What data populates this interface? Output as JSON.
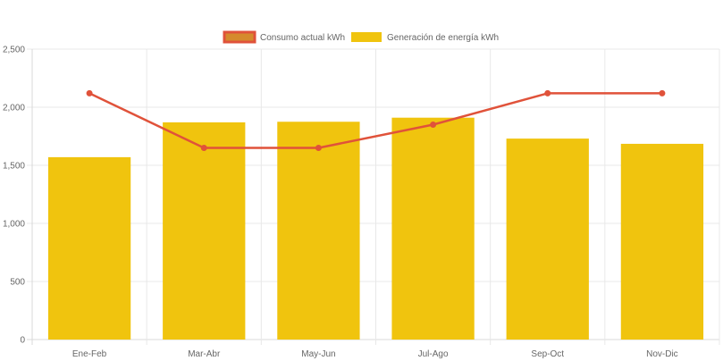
{
  "chart_data": {
    "type": "bar",
    "categories": [
      "Ene-Feb",
      "Mar-Abr",
      "May-Jun",
      "Jul-Ago",
      "Sep-Oct",
      "Nov-Dic"
    ],
    "series": [
      {
        "name": "Consumo actual kWh",
        "type": "line",
        "values": [
          2120,
          1650,
          1650,
          1850,
          2120,
          2120
        ],
        "color": "#e0523a",
        "legend_fill": "#d58a2c"
      },
      {
        "name": "Generación de energía kWh",
        "type": "bar",
        "values": [
          1570,
          1870,
          1875,
          1910,
          1730,
          1685
        ],
        "color": "#f0c40e"
      }
    ],
    "ylim": [
      0,
      2500
    ],
    "yticks": [
      0,
      500,
      1000,
      1500,
      2000,
      2500
    ],
    "ytick_labels": [
      "0",
      "500",
      "1,000",
      "1,500",
      "2,000",
      "2,500"
    ],
    "grid": true,
    "legend_position": "top-center",
    "title": "",
    "xlabel": "",
    "ylabel": ""
  }
}
